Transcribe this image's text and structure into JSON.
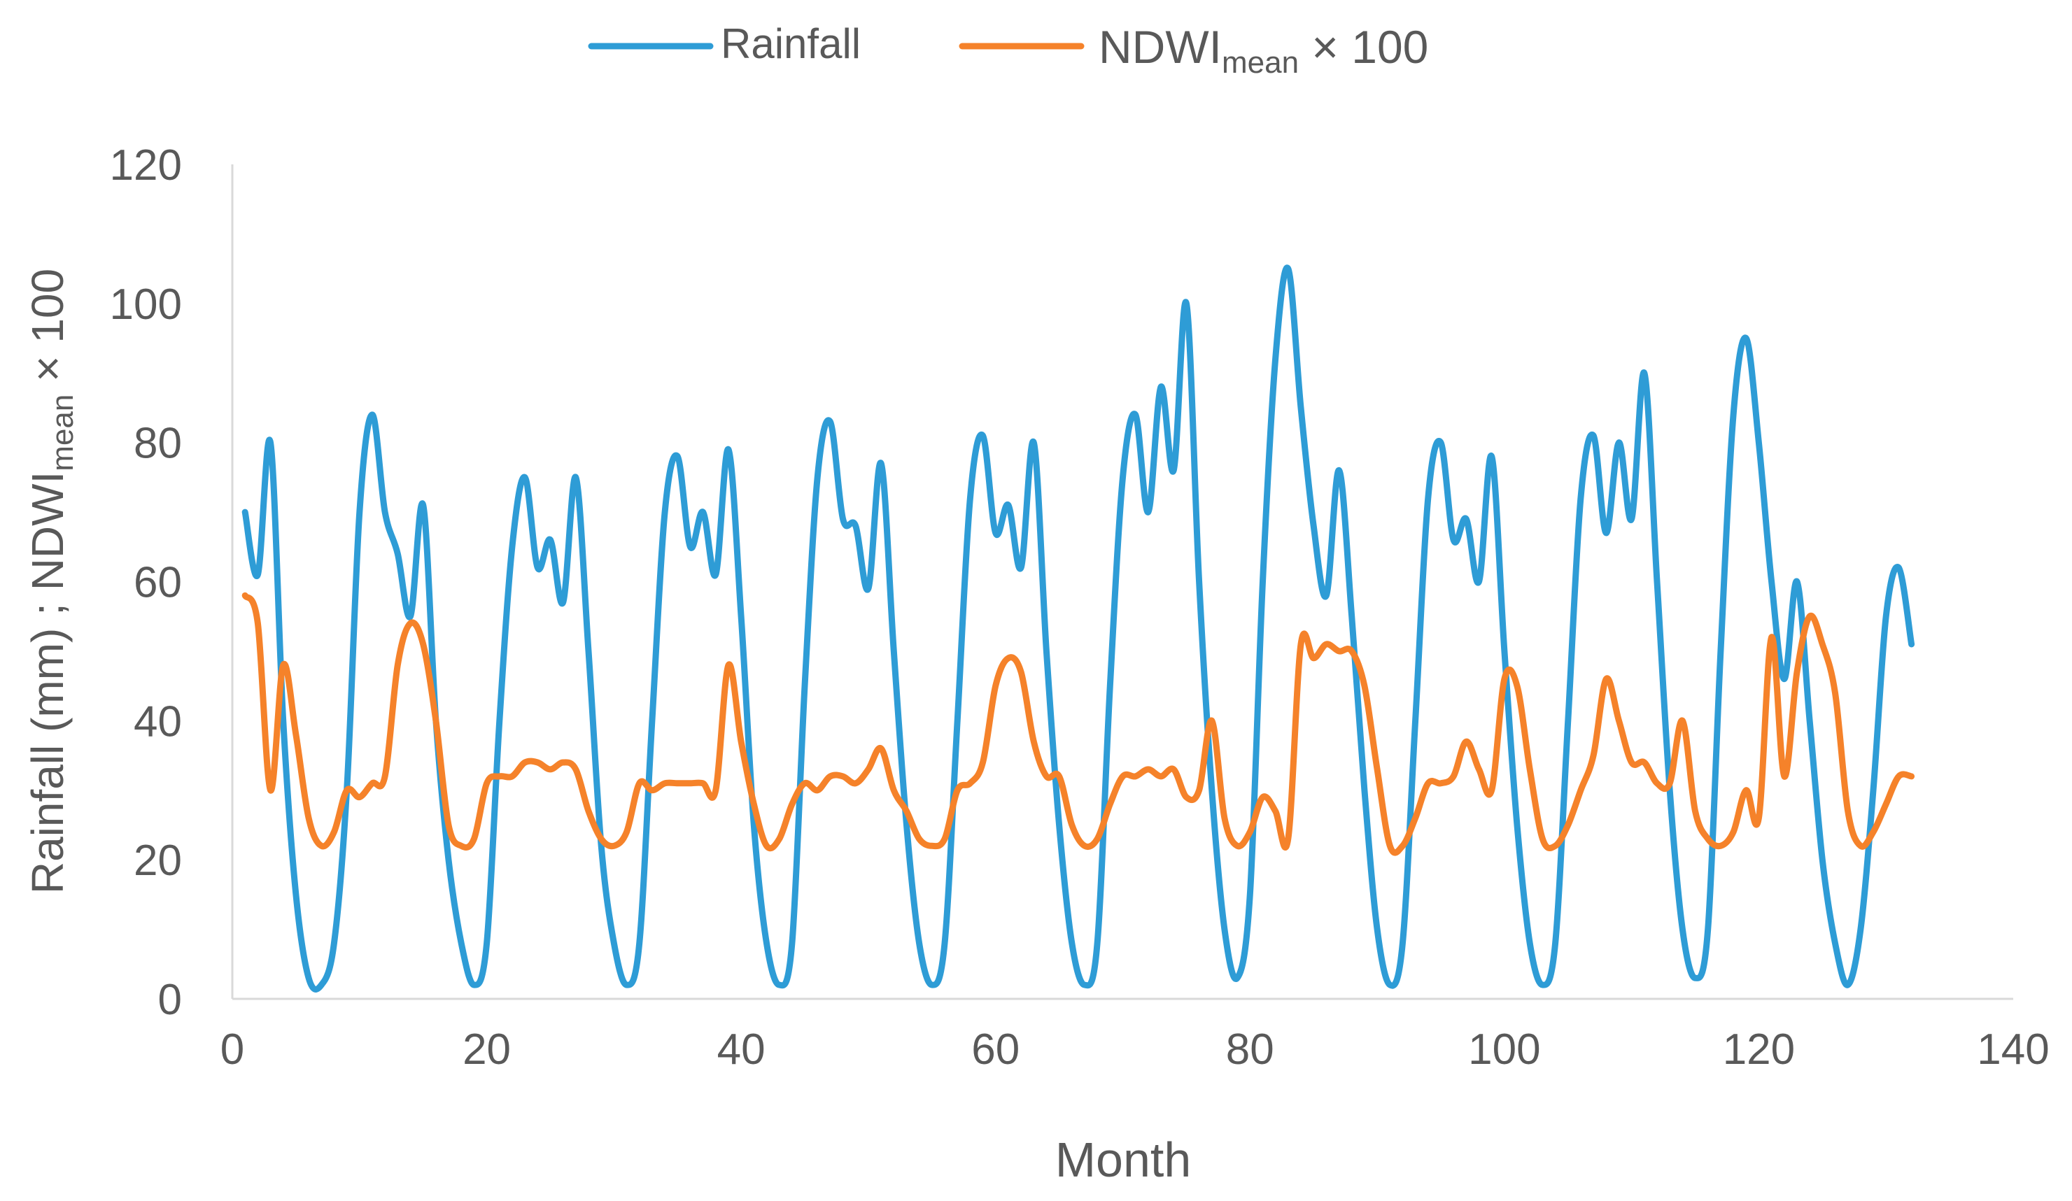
{
  "chart_data": {
    "type": "line",
    "title": "",
    "xlabel": "Month",
    "ylabel": {
      "part1": "Rainfall (mm) ; NDWI",
      "sub": "mean",
      "part2": " × 100"
    },
    "xlim": [
      0,
      140
    ],
    "ylim": [
      0,
      120
    ],
    "xticks": [
      0,
      20,
      40,
      60,
      80,
      100,
      120,
      140
    ],
    "yticks": [
      0,
      20,
      40,
      60,
      80,
      100,
      120
    ],
    "xtick_labels": [
      "0",
      "20",
      "40",
      "60",
      "80",
      "100",
      "120",
      "140"
    ],
    "ytick_labels": [
      "0",
      "20",
      "40",
      "60",
      "80",
      "100",
      "120"
    ],
    "grid": false,
    "legend_position": "top-center",
    "series": [
      {
        "name": "Rainfall",
        "legend": {
          "label": "Rainfall"
        },
        "color": "#2E9CD6",
        "x": [
          1,
          2,
          3,
          4,
          5,
          6,
          7,
          8,
          9,
          10,
          11,
          12,
          13,
          14,
          15,
          16,
          17,
          18,
          19,
          20,
          21,
          22,
          23,
          24,
          25,
          26,
          27,
          28,
          29,
          30,
          31,
          32,
          33,
          34,
          35,
          36,
          37,
          38,
          39,
          40,
          41,
          42,
          43,
          44,
          45,
          46,
          47,
          48,
          49,
          50,
          51,
          52,
          53,
          54,
          55,
          56,
          57,
          58,
          59,
          60,
          61,
          62,
          63,
          64,
          65,
          66,
          67,
          68,
          69,
          70,
          71,
          72,
          73,
          74,
          75,
          76,
          77,
          78,
          79,
          80,
          81,
          82,
          83,
          84,
          85,
          86,
          87,
          88,
          89,
          90,
          91,
          92,
          93,
          94,
          95,
          96,
          97,
          98,
          99,
          100,
          101,
          102,
          103,
          104,
          105,
          106,
          107,
          108,
          109,
          110,
          111,
          112,
          113,
          114,
          115,
          116,
          117,
          118,
          119,
          120,
          121,
          122,
          123,
          124,
          125,
          126,
          127,
          128,
          129,
          130,
          131,
          132
        ],
        "values": [
          70,
          61,
          80,
          40,
          15,
          3,
          2,
          8,
          30,
          70,
          84,
          70,
          64,
          55,
          71,
          40,
          20,
          8,
          2,
          8,
          40,
          65,
          75,
          62,
          66,
          57,
          75,
          50,
          22,
          8,
          2,
          8,
          40,
          70,
          78,
          65,
          70,
          61,
          79,
          55,
          25,
          8,
          2,
          8,
          45,
          75,
          83,
          69,
          68,
          59,
          77,
          50,
          25,
          8,
          2,
          8,
          40,
          72,
          81,
          67,
          71,
          62,
          80,
          50,
          25,
          8,
          2,
          8,
          45,
          75,
          84,
          70,
          88,
          76,
          100,
          60,
          30,
          10,
          3,
          15,
          60,
          92,
          105,
          85,
          68,
          58,
          76,
          55,
          30,
          10,
          2,
          8,
          40,
          72,
          80,
          66,
          69,
          60,
          78,
          50,
          25,
          8,
          2,
          8,
          40,
          72,
          81,
          67,
          80,
          69,
          90,
          60,
          30,
          10,
          3,
          10,
          50,
          84,
          95,
          80,
          60,
          46,
          60,
          40,
          20,
          8,
          2,
          10,
          30,
          55,
          62,
          51
        ]
      },
      {
        "name": "NDWI_mean × 100",
        "legend": {
          "main": "NDWI",
          "sub": "mean",
          "suffix": " × 100"
        },
        "color": "#F5822A",
        "x": [
          1,
          2,
          3,
          4,
          5,
          6,
          7,
          8,
          9,
          10,
          11,
          12,
          13,
          14,
          15,
          16,
          17,
          18,
          19,
          20,
          21,
          22,
          23,
          24,
          25,
          26,
          27,
          28,
          29,
          30,
          31,
          32,
          33,
          34,
          35,
          36,
          37,
          38,
          39,
          40,
          41,
          42,
          43,
          44,
          45,
          46,
          47,
          48,
          49,
          50,
          51,
          52,
          53,
          54,
          55,
          56,
          57,
          58,
          59,
          60,
          61,
          62,
          63,
          64,
          65,
          66,
          67,
          68,
          69,
          70,
          71,
          72,
          73,
          74,
          75,
          76,
          77,
          78,
          79,
          80,
          81,
          82,
          83,
          84,
          85,
          86,
          87,
          88,
          89,
          90,
          91,
          92,
          93,
          94,
          95,
          96,
          97,
          98,
          99,
          100,
          101,
          102,
          103,
          104,
          105,
          106,
          107,
          108,
          109,
          110,
          111,
          112,
          113,
          114,
          115,
          116,
          117,
          118,
          119,
          120,
          121,
          122,
          123,
          124,
          125,
          126,
          127,
          128,
          129,
          130,
          131,
          132
        ],
        "values": [
          58,
          54,
          30,
          48,
          38,
          26,
          22,
          24,
          30,
          29,
          31,
          32,
          48,
          54,
          51,
          40,
          25,
          22,
          23,
          31,
          32,
          32,
          34,
          34,
          33,
          34,
          33,
          27,
          23,
          22,
          24,
          31,
          30,
          31,
          31,
          31,
          31,
          30,
          48,
          37,
          28,
          22,
          23,
          28,
          31,
          30,
          32,
          32,
          31,
          33,
          36,
          30,
          27,
          23,
          22,
          23,
          30,
          31,
          34,
          45,
          49,
          47,
          37,
          32,
          32,
          25,
          22,
          23,
          28,
          32,
          32,
          33,
          32,
          33,
          29,
          30,
          40,
          26,
          22,
          24,
          29,
          27,
          23,
          51,
          49,
          51,
          50,
          50,
          45,
          33,
          22,
          22,
          26,
          31,
          31,
          32,
          37,
          33,
          30,
          46,
          45,
          33,
          23,
          22,
          25,
          30,
          35,
          46,
          40,
          34,
          34,
          31,
          31,
          40,
          27,
          23,
          22,
          24,
          30,
          26,
          52,
          32,
          47,
          55,
          51,
          44,
          27,
          22,
          24,
          28,
          32,
          32
        ]
      }
    ]
  }
}
